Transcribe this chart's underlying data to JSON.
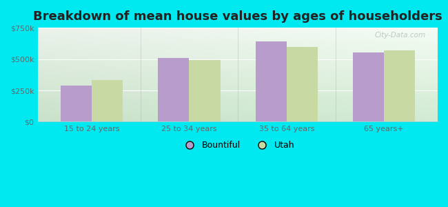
{
  "title": "Breakdown of mean house values by ages of householders",
  "categories": [
    "15 to 24 years",
    "25 to 34 years",
    "35 to 64 years",
    "65 years+"
  ],
  "bountiful": [
    290000,
    510000,
    640000,
    555000
  ],
  "utah": [
    335000,
    490000,
    595000,
    570000
  ],
  "bountiful_color": "#b89dcc",
  "utah_color": "#c8d9a4",
  "background_color": "#00e8f0",
  "ylim": [
    0,
    750000
  ],
  "yticks": [
    0,
    250000,
    500000,
    750000
  ],
  "ytick_labels": [
    "$0",
    "$250k",
    "$500k",
    "$750k"
  ],
  "legend_bountiful": "Bountiful",
  "legend_utah": "Utah",
  "title_fontsize": 13,
  "bar_width": 0.32,
  "watermark": "City-Data.com",
  "grad_top": "#f0f8f0",
  "grad_bottom": "#d8eedd",
  "grad_right": "#f8fff8"
}
